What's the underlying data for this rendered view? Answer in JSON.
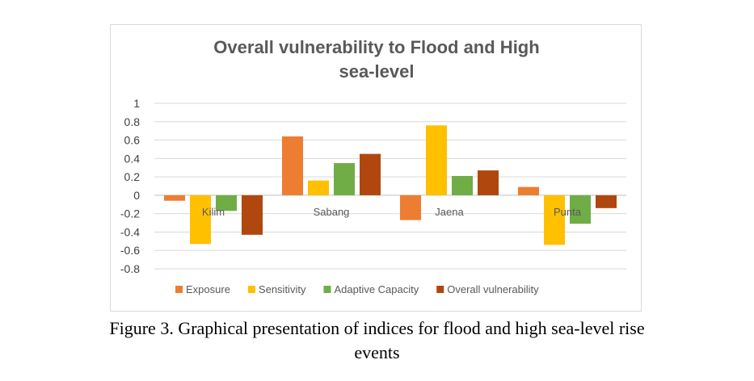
{
  "chart_data": {
    "type": "bar",
    "title_line1": "Overall vulnerability to Flood and High",
    "title_line2": "sea-level",
    "categories": [
      "Kilim",
      "Sabang",
      "Jaena",
      "Punta"
    ],
    "series": [
      {
        "name": "Exposure",
        "color": "#ed7d31",
        "values": [
          -0.06,
          0.64,
          -0.27,
          0.09
        ]
      },
      {
        "name": "Sensitivity",
        "color": "#ffc000",
        "values": [
          -0.53,
          0.16,
          0.76,
          -0.54
        ]
      },
      {
        "name": "Adaptive Capacity",
        "color": "#70ad47",
        "values": [
          -0.17,
          0.35,
          0.21,
          -0.31
        ]
      },
      {
        "name": "Overall vulnerability",
        "color": "#b0470f",
        "values": [
          -0.43,
          0.45,
          0.27,
          -0.14
        ]
      }
    ],
    "yticks": [
      "1",
      "0.8",
      "0.6",
      "0.4",
      "0.2",
      "0",
      "-0.2",
      "-0.4",
      "-0.6",
      "-0.8"
    ],
    "ylim": [
      -0.8,
      1
    ],
    "grid": true,
    "legend_position": "bottom"
  },
  "caption": {
    "line1": "Figure 3. Graphical presentation of indices for flood and high sea-level rise",
    "line2": "events"
  }
}
